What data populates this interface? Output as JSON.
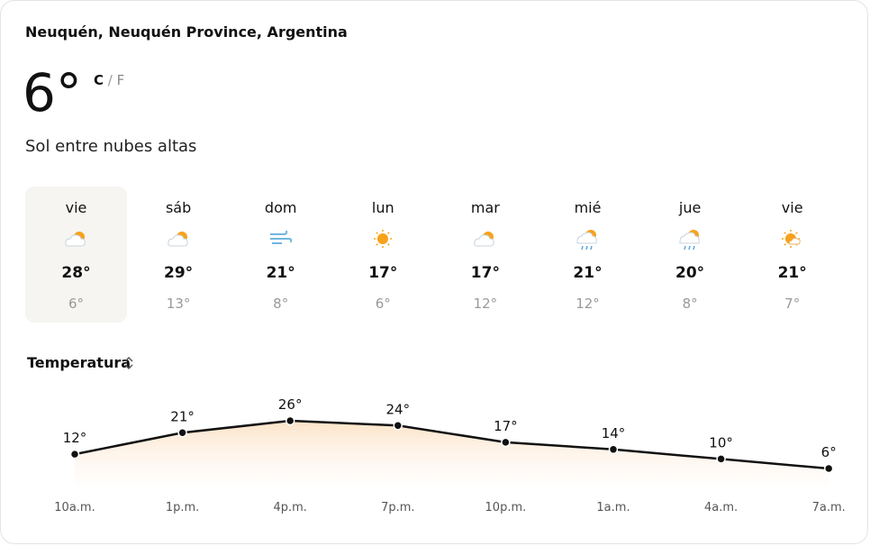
{
  "location": "Neuquén, Neuquén Province, Argentina",
  "current": {
    "temperature": "6°",
    "unit_c": "C",
    "separator": "/",
    "unit_f": "F",
    "condition": "Sol entre nubes altas"
  },
  "days": [
    {
      "name": "vie",
      "high": "28°",
      "low": "6°"
    },
    {
      "name": "sáb",
      "high": "29°",
      "low": "13°"
    },
    {
      "name": "dom",
      "high": "21°",
      "low": "8°"
    },
    {
      "name": "lun",
      "high": "17°",
      "low": "6°"
    },
    {
      "name": "mar",
      "high": "17°",
      "low": "12°"
    },
    {
      "name": "mié",
      "high": "21°",
      "low": "12°"
    },
    {
      "name": "jue",
      "high": "20°",
      "low": "8°"
    },
    {
      "name": "vie",
      "high": "21°",
      "low": "7°"
    }
  ],
  "chart_data": {
    "type": "line",
    "title": "Temperatura",
    "categories": [
      "10a.m.",
      "1p.m.",
      "4p.m.",
      "7p.m.",
      "10p.m.",
      "1a.m.",
      "4a.m.",
      "7a.m."
    ],
    "values": [
      12,
      21,
      26,
      24,
      17,
      14,
      10,
      6
    ],
    "value_labels": [
      "12°",
      "21°",
      "26°",
      "24°",
      "17°",
      "14°",
      "10°",
      "6°"
    ],
    "color": "#111111"
  }
}
